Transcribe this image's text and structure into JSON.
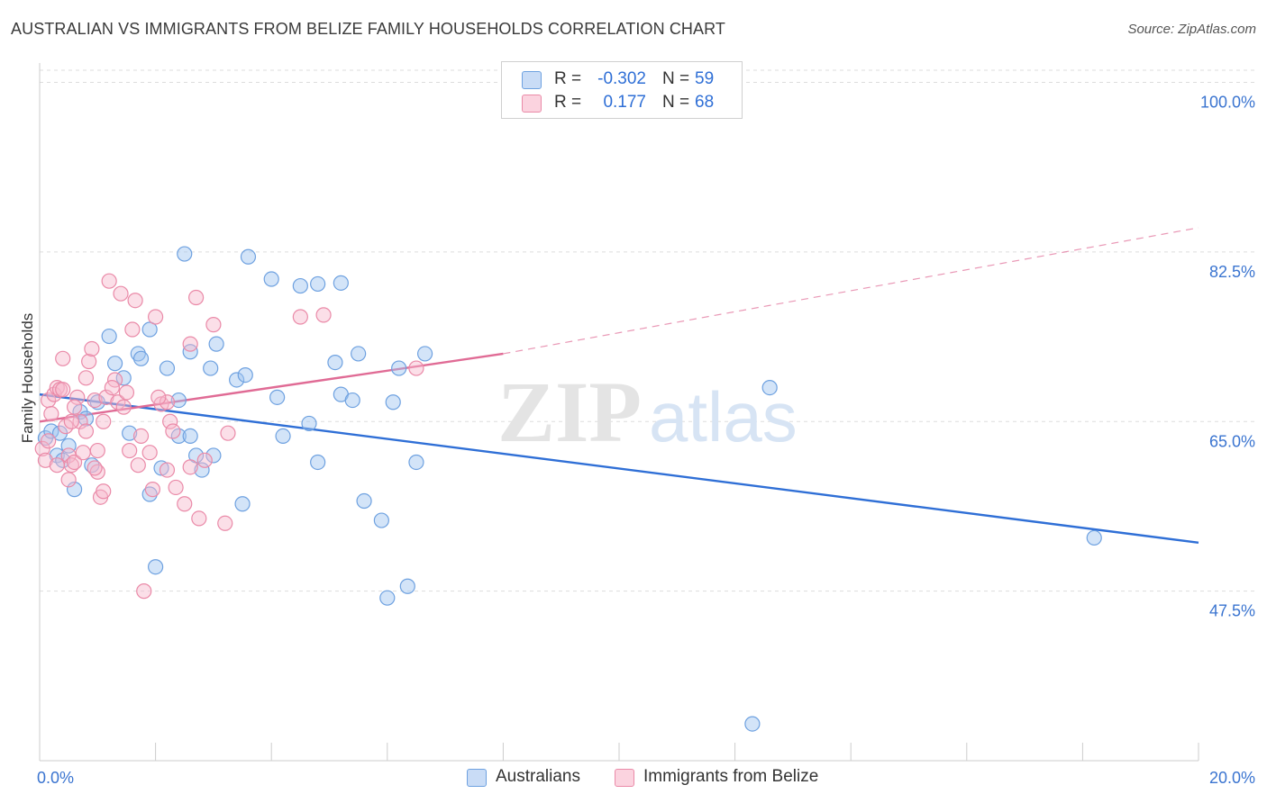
{
  "title": "AUSTRALIAN VS IMMIGRANTS FROM BELIZE FAMILY HOUSEHOLDS CORRELATION CHART",
  "source": "Source: ZipAtlas.com",
  "watermark": {
    "zip": "ZIP",
    "atlas": "atlas"
  },
  "legend": {
    "r_label": "R =",
    "n_label": "N =",
    "rows": [
      {
        "r": "-0.302",
        "n": "59",
        "color": "#9ec3f0",
        "stroke": "#6ea1e0"
      },
      {
        "r": "0.177",
        "n": "68",
        "color": "#f7b8cb",
        "stroke": "#ea8aa8"
      }
    ]
  },
  "bottom_legend": [
    "Australians",
    "Immigrants from Belize"
  ],
  "chart_data": {
    "type": "scatter",
    "title": "AUSTRALIAN VS IMMIGRANTS FROM BELIZE FAMILY HOUSEHOLDS CORRELATION CHART",
    "xlabel": "",
    "ylabel": "Family Households",
    "xlim": [
      0.0,
      20.0
    ],
    "ylim": [
      30.0,
      102.0
    ],
    "x_tick_labels": [
      {
        "value": 0.0,
        "label": "0.0%"
      },
      {
        "value": 20.0,
        "label": "20.0%"
      }
    ],
    "y_tick_labels": [
      {
        "value": 47.5,
        "label": "47.5%"
      },
      {
        "value": 65.0,
        "label": "65.0%"
      },
      {
        "value": 82.5,
        "label": "82.5%"
      },
      {
        "value": 100.0,
        "label": "100.0%"
      }
    ],
    "grid": "dashed horizontal",
    "legend_position": "top-center",
    "series": [
      {
        "name": "Australians",
        "color": "#2f6fd6",
        "fill": "#9ec3f0",
        "points": [
          [
            0.1,
            63.3
          ],
          [
            0.2,
            64.0
          ],
          [
            0.3,
            61.5
          ],
          [
            0.35,
            63.8
          ],
          [
            0.4,
            61.0
          ],
          [
            0.5,
            62.5
          ],
          [
            0.6,
            58.0
          ],
          [
            0.7,
            66.0
          ],
          [
            0.8,
            65.3
          ],
          [
            0.9,
            60.5
          ],
          [
            1.0,
            67.0
          ],
          [
            1.2,
            73.8
          ],
          [
            1.3,
            71.0
          ],
          [
            1.45,
            69.5
          ],
          [
            1.55,
            63.8
          ],
          [
            1.7,
            72.0
          ],
          [
            1.75,
            71.5
          ],
          [
            1.9,
            74.5
          ],
          [
            1.9,
            57.5
          ],
          [
            2.0,
            50.0
          ],
          [
            2.1,
            60.2
          ],
          [
            2.2,
            70.5
          ],
          [
            2.4,
            67.2
          ],
          [
            2.4,
            63.5
          ],
          [
            2.5,
            82.3
          ],
          [
            2.6,
            63.5
          ],
          [
            2.6,
            72.2
          ],
          [
            2.7,
            61.5
          ],
          [
            2.8,
            60.0
          ],
          [
            2.95,
            70.5
          ],
          [
            3.0,
            61.5
          ],
          [
            3.05,
            73.0
          ],
          [
            3.4,
            69.3
          ],
          [
            3.5,
            56.5
          ],
          [
            3.55,
            69.8
          ],
          [
            3.6,
            82.0
          ],
          [
            4.0,
            79.7
          ],
          [
            4.1,
            67.5
          ],
          [
            4.2,
            63.5
          ],
          [
            4.5,
            79.0
          ],
          [
            4.65,
            64.8
          ],
          [
            4.8,
            60.8
          ],
          [
            4.8,
            79.2
          ],
          [
            5.1,
            71.1
          ],
          [
            5.2,
            79.3
          ],
          [
            5.2,
            67.8
          ],
          [
            5.4,
            67.2
          ],
          [
            5.5,
            72.0
          ],
          [
            5.6,
            56.8
          ],
          [
            5.9,
            54.8
          ],
          [
            6.0,
            46.8
          ],
          [
            6.1,
            67.0
          ],
          [
            6.2,
            70.5
          ],
          [
            6.35,
            48.0
          ],
          [
            6.5,
            60.8
          ],
          [
            6.65,
            72.0
          ],
          [
            12.6,
            68.5
          ],
          [
            12.3,
            33.8
          ],
          [
            18.2,
            53.0
          ]
        ],
        "trend": {
          "x0": 0.0,
          "y0": 67.8,
          "x1": 20.0,
          "y1": 52.5
        }
      },
      {
        "name": "Immigrants from Belize",
        "color": "#e06b95",
        "fill": "#f7b8cb",
        "points": [
          [
            0.05,
            62.2
          ],
          [
            0.1,
            61.0
          ],
          [
            0.15,
            67.2
          ],
          [
            0.2,
            65.8
          ],
          [
            0.25,
            67.8
          ],
          [
            0.3,
            68.5
          ],
          [
            0.35,
            68.3
          ],
          [
            0.4,
            71.5
          ],
          [
            0.45,
            64.5
          ],
          [
            0.5,
            61.5
          ],
          [
            0.5,
            59.0
          ],
          [
            0.55,
            60.5
          ],
          [
            0.6,
            60.8
          ],
          [
            0.65,
            67.5
          ],
          [
            0.7,
            65.0
          ],
          [
            0.75,
            61.8
          ],
          [
            0.8,
            69.5
          ],
          [
            0.85,
            71.2
          ],
          [
            0.9,
            72.5
          ],
          [
            0.95,
            67.2
          ],
          [
            1.0,
            62.0
          ],
          [
            1.0,
            59.8
          ],
          [
            1.05,
            57.2
          ],
          [
            1.1,
            57.8
          ],
          [
            1.1,
            65.0
          ],
          [
            1.15,
            67.5
          ],
          [
            1.2,
            79.5
          ],
          [
            1.3,
            69.3
          ],
          [
            1.35,
            67.0
          ],
          [
            1.4,
            78.2
          ],
          [
            1.5,
            68.0
          ],
          [
            1.55,
            62.0
          ],
          [
            1.6,
            74.5
          ],
          [
            1.65,
            77.5
          ],
          [
            1.7,
            60.5
          ],
          [
            1.75,
            63.5
          ],
          [
            1.8,
            47.5
          ],
          [
            1.9,
            61.8
          ],
          [
            1.95,
            58.0
          ],
          [
            2.0,
            75.8
          ],
          [
            2.1,
            66.8
          ],
          [
            2.2,
            60.0
          ],
          [
            2.2,
            67.0
          ],
          [
            2.25,
            65.0
          ],
          [
            2.3,
            64.0
          ],
          [
            2.35,
            58.2
          ],
          [
            2.5,
            56.5
          ],
          [
            2.6,
            60.3
          ],
          [
            2.6,
            73.0
          ],
          [
            2.7,
            77.8
          ],
          [
            2.75,
            55.0
          ],
          [
            2.85,
            61.0
          ],
          [
            3.0,
            75.0
          ],
          [
            3.2,
            54.5
          ],
          [
            3.25,
            63.8
          ],
          [
            4.5,
            75.8
          ],
          [
            4.9,
            76.0
          ],
          [
            6.5,
            70.5
          ],
          [
            0.15,
            63.0
          ],
          [
            0.3,
            60.5
          ],
          [
            0.6,
            66.5
          ],
          [
            0.8,
            64.0
          ],
          [
            1.25,
            68.5
          ],
          [
            0.4,
            68.3
          ],
          [
            0.95,
            60.2
          ],
          [
            0.55,
            65.0
          ],
          [
            1.45,
            66.5
          ],
          [
            2.05,
            67.5
          ]
        ],
        "trend": {
          "x0": 0.0,
          "y0": 65.0,
          "x1": 8.0,
          "y1": 72.0
        },
        "trend_extension": {
          "x0": 8.0,
          "y0": 72.0,
          "x1": 20.0,
          "y1": 85.0
        }
      }
    ]
  }
}
